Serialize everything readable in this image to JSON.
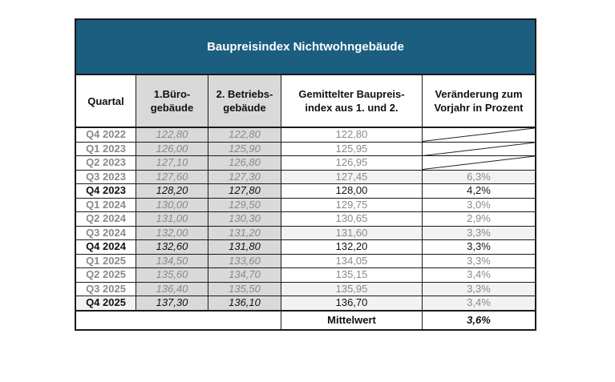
{
  "title": "Baupreisindex Nichtwohngebäude",
  "headers": {
    "quartal": "Quartal",
    "buero": "1.Büro- gebäude",
    "betrieb": "2. Betriebs- gebäude",
    "mittel": "Gemittelter Baupreis- index aus 1. und 2.",
    "veraenderung": "Veränderung zum Vorjahr in Prozent"
  },
  "rows": [
    {
      "quartal": "Q4 2022",
      "buero": "122,80",
      "betrieb": "122,80",
      "mittel": "122,80",
      "veraenderung": "",
      "emph": false,
      "slash": true
    },
    {
      "quartal": "Q1 2023",
      "buero": "126,00",
      "betrieb": "125,90",
      "mittel": "125,95",
      "veraenderung": "",
      "emph": false,
      "slash": true
    },
    {
      "quartal": "Q2 2023",
      "buero": "127,10",
      "betrieb": "126,80",
      "mittel": "126,95",
      "veraenderung": "",
      "emph": false,
      "slash": true
    },
    {
      "quartal": "Q3 2023",
      "buero": "127,60",
      "betrieb": "127,30",
      "mittel": "127,45",
      "veraenderung": "6,3%",
      "emph": false,
      "shade": true
    },
    {
      "quartal": "Q4 2023",
      "buero": "128,20",
      "betrieb": "127,80",
      "mittel": "128,00",
      "veraenderung": "4,2%",
      "emph": true
    },
    {
      "quartal": "Q1 2024",
      "buero": "130,00",
      "betrieb": "129,50",
      "mittel": "129,75",
      "veraenderung": "3,0%",
      "emph": false
    },
    {
      "quartal": "Q2 2024",
      "buero": "131,00",
      "betrieb": "130,30",
      "mittel": "130,65",
      "veraenderung": "2,9%",
      "emph": false
    },
    {
      "quartal": "Q3 2024",
      "buero": "132,00",
      "betrieb": "131,20",
      "mittel": "131,60",
      "veraenderung": "3,3%",
      "emph": false,
      "shade": true
    },
    {
      "quartal": "Q4 2024",
      "buero": "132,60",
      "betrieb": "131,80",
      "mittel": "132,20",
      "veraenderung": "3,3%",
      "emph": true
    },
    {
      "quartal": "Q1 2025",
      "buero": "134,50",
      "betrieb": "133,60",
      "mittel": "134,05",
      "veraenderung": "3,3%",
      "emph": false
    },
    {
      "quartal": "Q2 2025",
      "buero": "135,60",
      "betrieb": "134,70",
      "mittel": "135,15",
      "veraenderung": "3,4%",
      "emph": false
    },
    {
      "quartal": "Q3 2025",
      "buero": "136,40",
      "betrieb": "135,50",
      "mittel": "135,95",
      "veraenderung": "3,3%",
      "emph": false,
      "shade": true
    },
    {
      "quartal": "Q4 2025",
      "buero": "137,30",
      "betrieb": "136,10",
      "mittel": "136,70",
      "veraenderung": "3,4%",
      "emph": true,
      "shade": true,
      "veraenderung_muted": true
    }
  ],
  "footer": {
    "label": "Mittelwert",
    "value": "3,6%"
  },
  "colors": {
    "title_bg": "#1b5e80",
    "shaded_cols": "#d9d9d9",
    "row_shade": "#f2f2f2",
    "muted_text": "#8a8a8a"
  }
}
